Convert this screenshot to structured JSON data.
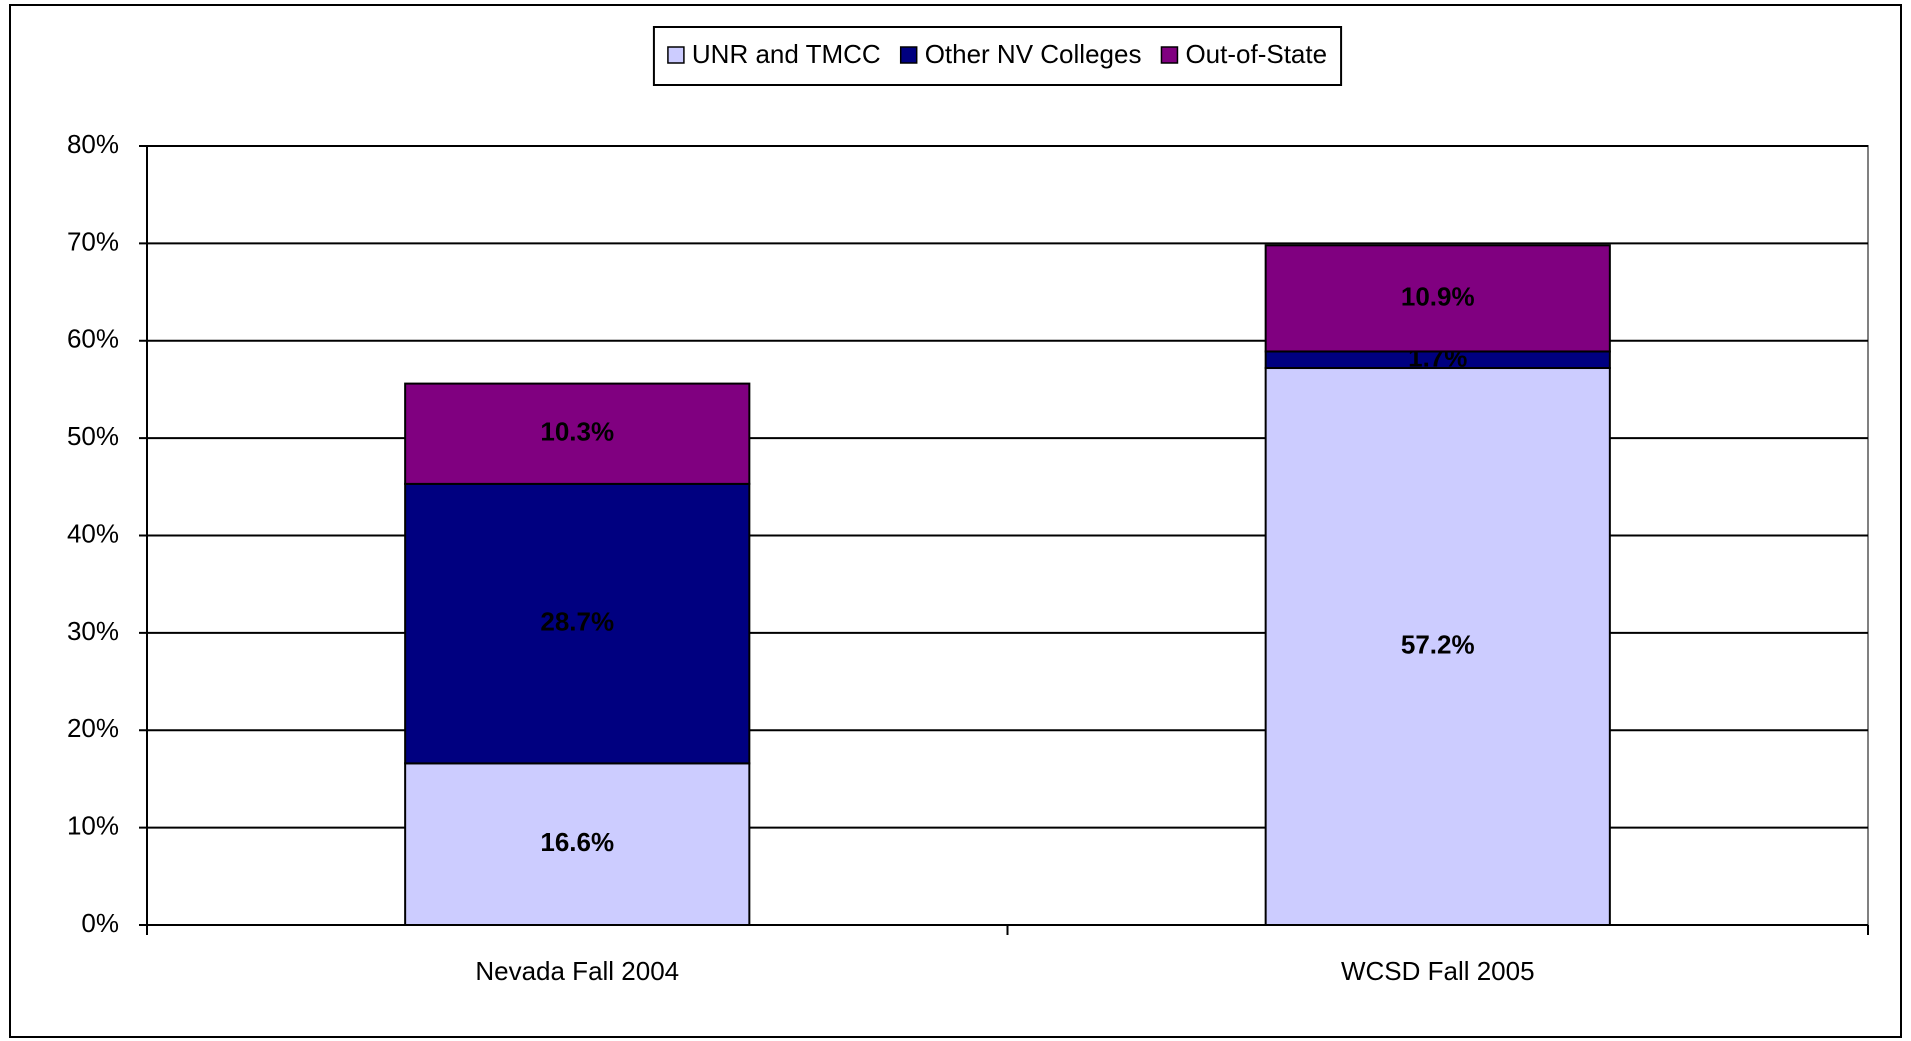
{
  "chart_data": {
    "type": "stacked_bar",
    "categories": [
      "Nevada Fall 2004",
      "WCSD Fall 2005"
    ],
    "series": [
      {
        "name": "UNR and TMCC",
        "color": "#ccccff",
        "values": [
          16.6,
          57.2
        ],
        "value_labels": [
          "16.6%",
          "57.2%"
        ]
      },
      {
        "name": "Other NV Colleges",
        "color": "#000080",
        "values": [
          28.7,
          1.7
        ],
        "value_labels": [
          "28.7%",
          "1.7%"
        ]
      },
      {
        "name": "Out-of-State",
        "color": "#800080",
        "values": [
          10.3,
          10.9
        ],
        "value_labels": [
          "10.3%",
          "10.9%"
        ]
      }
    ],
    "ylim": [
      0,
      80
    ],
    "yticks": [
      {
        "value": 0,
        "label": "0%"
      },
      {
        "value": 10,
        "label": "10%"
      },
      {
        "value": 20,
        "label": "20%"
      },
      {
        "value": 30,
        "label": "30%"
      },
      {
        "value": 40,
        "label": "40%"
      },
      {
        "value": 50,
        "label": "50%"
      },
      {
        "value": 60,
        "label": "60%"
      },
      {
        "value": 70,
        "label": "70%"
      },
      {
        "value": 80,
        "label": "80%"
      }
    ],
    "grid": true,
    "legend": "top"
  }
}
